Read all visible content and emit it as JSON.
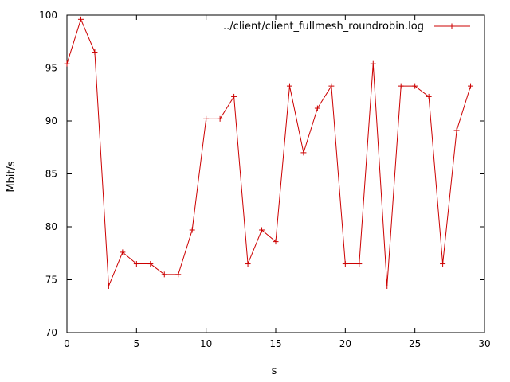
{
  "chart_data": {
    "type": "line",
    "title": "",
    "xlabel": "s",
    "ylabel": "Mbit/s",
    "xlim": [
      0,
      30
    ],
    "ylim": [
      70,
      100
    ],
    "xticks": [
      0,
      5,
      10,
      15,
      20,
      25,
      30
    ],
    "yticks": [
      70,
      75,
      80,
      85,
      90,
      95,
      100
    ],
    "grid": false,
    "legend_position": "top-right",
    "series": [
      {
        "name": "../client/client_fullmesh_roundrobin.log",
        "color": "#cc0000",
        "marker": "plus",
        "x": [
          0,
          1,
          2,
          3,
          4,
          5,
          6,
          7,
          8,
          9,
          10,
          11,
          12,
          13,
          14,
          15,
          16,
          17,
          18,
          19,
          20,
          21,
          22,
          23,
          24,
          25,
          26,
          27,
          28,
          29
        ],
        "y": [
          95.4,
          99.6,
          96.5,
          74.4,
          77.6,
          76.5,
          76.5,
          75.5,
          75.5,
          79.7,
          90.2,
          90.2,
          92.3,
          76.5,
          79.7,
          78.6,
          93.3,
          87.0,
          91.2,
          93.3,
          76.5,
          76.5,
          95.4,
          74.4,
          93.3,
          93.3,
          92.3,
          76.5,
          89.1,
          93.3
        ]
      }
    ]
  }
}
